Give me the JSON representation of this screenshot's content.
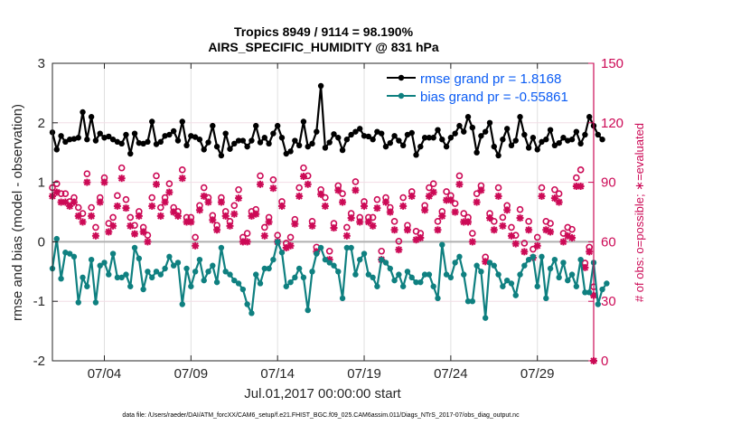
{
  "chart_data": {
    "type": "line",
    "title": "Tropics 8949 / 9114 = 98.190%",
    "subtitle": "AIRS_SPECIFIC_HUMIDITY @ 831 hPa",
    "xlabel": "Jul.01,2017 00:00:00 start",
    "ylabel": "rmse and bias (model - observation)",
    "ylabel_right": "# of obs: o=possible; ∗=evaluated",
    "footnote": "data file: /Users/raeder/DAI/ATM_forcXX/CAM6_setup/f.e21.FHIST_BGC.f09_025.CAM6assim.011/Diags_NTrS_2017-07/obs_diag_output.nc",
    "xlim": [
      0,
      31.25
    ],
    "ylim": [
      -2,
      3
    ],
    "ylim_right": [
      0,
      150
    ],
    "x_ticks": [
      3,
      8,
      13,
      18,
      23,
      28
    ],
    "x_tick_labels": [
      "07/04",
      "07/09",
      "07/14",
      "07/19",
      "07/24",
      "07/29"
    ],
    "y_ticks": [
      -2,
      -1,
      0,
      1,
      2,
      3
    ],
    "y_tick_labels": [
      "-2",
      "-1",
      "0",
      "1",
      "2",
      "3"
    ],
    "y_ticks_right": [
      0,
      30,
      60,
      90,
      120,
      150
    ],
    "y_tick_labels_right": [
      "0",
      "30",
      "60",
      "90",
      "120",
      "150"
    ],
    "grid": true,
    "legend_position": "top-right",
    "legend": [
      "rmse grand pr = 1.8168",
      "bias grand pr = -0.55861"
    ],
    "x_step_days": 0.25,
    "series": [
      {
        "name": "rmse grand pr = 1.8168",
        "axis": "left",
        "color": "#000000",
        "values": [
          1.84,
          1.55,
          1.78,
          1.68,
          1.72,
          1.73,
          1.75,
          2.18,
          1.72,
          2.1,
          1.7,
          1.82,
          1.75,
          1.77,
          1.72,
          1.68,
          1.65,
          1.8,
          1.48,
          1.82,
          1.66,
          1.65,
          1.68,
          2.02,
          1.64,
          1.68,
          1.78,
          1.8,
          1.86,
          1.7,
          2.02,
          1.62,
          1.78,
          1.76,
          1.72,
          1.55,
          1.67,
          1.95,
          1.6,
          1.45,
          1.82,
          1.56,
          1.65,
          1.7,
          1.7,
          1.6,
          1.7,
          1.95,
          1.67,
          1.75,
          1.65,
          1.82,
          1.95,
          1.75,
          1.48,
          1.52,
          1.7,
          1.62,
          2.02,
          1.6,
          1.65,
          1.85,
          2.62,
          1.58,
          1.67,
          1.81,
          1.75,
          1.54,
          1.72,
          1.8,
          1.85,
          1.9,
          1.78,
          1.77,
          1.72,
          1.85,
          1.82,
          1.6,
          1.66,
          1.78,
          1.7,
          1.62,
          1.8,
          1.83,
          1.46,
          1.6,
          1.75,
          1.75,
          1.75,
          1.88,
          1.72,
          1.6,
          1.75,
          1.82,
          1.95,
          1.85,
          2.1,
          1.92,
          1.5,
          1.78,
          1.85,
          2.0,
          1.6,
          1.45,
          1.72,
          1.9,
          1.62,
          1.7,
          2.1,
          1.8,
          1.58,
          1.75,
          1.55,
          1.68,
          1.72,
          1.88,
          1.62,
          1.66,
          1.75,
          1.7,
          1.72,
          1.85,
          1.65,
          1.8,
          2.1,
          1.95,
          1.8,
          1.72
        ]
      },
      {
        "name": "bias grand pr = -0.55861",
        "axis": "left",
        "color": "#0f8080",
        "values": [
          -0.45,
          0.05,
          -0.62,
          -0.18,
          -0.2,
          -0.25,
          -1.02,
          -0.6,
          -0.75,
          -0.3,
          -1.02,
          -0.4,
          -0.35,
          -0.55,
          -0.2,
          -0.6,
          -0.6,
          -0.55,
          -0.75,
          -0.1,
          -0.28,
          -0.8,
          -0.5,
          -0.6,
          -0.5,
          -0.55,
          -0.45,
          -0.25,
          -0.4,
          -0.35,
          -1.05,
          -0.45,
          -0.75,
          -0.5,
          -0.3,
          -0.65,
          -0.5,
          -0.4,
          -0.68,
          -0.1,
          -0.5,
          -0.55,
          -0.65,
          -0.7,
          -0.8,
          -1.05,
          -1.2,
          -0.55,
          -0.7,
          -0.45,
          -0.45,
          -0.3,
          0.0,
          -0.18,
          -0.75,
          -0.68,
          -0.6,
          -0.45,
          -0.6,
          -1.15,
          -0.5,
          -0.2,
          -0.1,
          -0.3,
          -0.35,
          -0.4,
          -0.5,
          -0.95,
          -0.1,
          -0.1,
          -0.55,
          -0.3,
          -0.2,
          -0.55,
          -0.6,
          -0.75,
          -0.3,
          -0.35,
          -0.45,
          -0.65,
          -0.55,
          -0.75,
          -0.5,
          -0.6,
          -0.68,
          -0.68,
          -0.55,
          -0.55,
          -0.75,
          -0.95,
          -0.05,
          -0.55,
          -0.6,
          -0.35,
          -0.25,
          -0.55,
          -1.0,
          -1.0,
          -0.4,
          -0.5,
          -1.28,
          -0.35,
          -0.4,
          -0.55,
          -0.75,
          -0.65,
          -0.7,
          -0.9,
          -0.55,
          -0.4,
          -0.3,
          -0.25,
          -0.75,
          -0.25,
          -0.95,
          -0.45,
          -0.3,
          -0.6,
          -0.35,
          -0.65,
          -0.55,
          -0.75,
          -0.3,
          -0.85,
          -0.85,
          -0.35,
          -1.05,
          -0.8,
          -0.7
        ]
      },
      {
        "name": "possible obs",
        "axis": "right",
        "marker": "o",
        "color": "#cc0a56",
        "values": [
          85,
          87,
          82,
          82,
          78,
          80,
          75,
          72,
          92,
          75,
          65,
          80,
          90,
          67,
          70,
          81,
          95,
          79,
          70,
          66,
          73,
          65,
          61,
          80,
          91,
          75,
          80,
          87,
          75,
          73,
          94,
          70,
          70,
          60,
          76,
          85,
          80,
          71,
          66,
          80,
          73,
          68,
          76,
          84,
          60,
          62,
          73,
          74,
          91,
          65,
          70,
          89,
          61,
          78,
          57,
          60,
          69,
          85,
          95,
          91,
          68,
          55,
          84,
          80,
          53,
          67,
          86,
          82,
          65,
          72,
          88,
          70,
          78,
          70,
          70,
          79,
          53,
          80,
          75,
          68,
          58,
          80,
          66,
          83,
          63,
          62,
          76,
          85,
          87,
          68,
          73,
          83,
          81,
          77,
          91,
          72,
          70,
          62,
          82,
          86,
          50,
          72,
          68,
          85,
          70,
          76,
          65,
          61,
          74,
          57,
          68,
          54,
          60,
          85,
          68,
          67,
          84,
          82,
          62,
          65,
          64,
          90,
          94,
          47,
          55,
          35
        ]
      },
      {
        "name": "evaluated obs",
        "axis": "right",
        "marker": "*",
        "color": "#cc0a56",
        "values": [
          83,
          85,
          80,
          80,
          78,
          80,
          73,
          70,
          90,
          73,
          63,
          80,
          90,
          65,
          68,
          78,
          92,
          77,
          68,
          64,
          73,
          65,
          60,
          78,
          89,
          73,
          80,
          85,
          75,
          73,
          92,
          70,
          70,
          58,
          76,
          83,
          80,
          71,
          66,
          80,
          73,
          68,
          74,
          82,
          60,
          60,
          73,
          74,
          89,
          63,
          70,
          87,
          60,
          78,
          57,
          58,
          69,
          83,
          93,
          89,
          68,
          55,
          84,
          78,
          51,
          67,
          86,
          80,
          63,
          72,
          86,
          70,
          78,
          70,
          68,
          77,
          51,
          80,
          75,
          66,
          56,
          78,
          66,
          83,
          61,
          62,
          76,
          83,
          85,
          66,
          73,
          81,
          81,
          75,
          89,
          70,
          70,
          60,
          80,
          86,
          50,
          72,
          66,
          83,
          68,
          76,
          63,
          59,
          72,
          55,
          66,
          52,
          58,
          83,
          66,
          65,
          82,
          80,
          60,
          63,
          62,
          88,
          88,
          47,
          55,
          33
        ]
      }
    ],
    "reference_line": {
      "y": 0,
      "color": "#b0b0b0"
    },
    "right_axis_end_marker": 0
  }
}
